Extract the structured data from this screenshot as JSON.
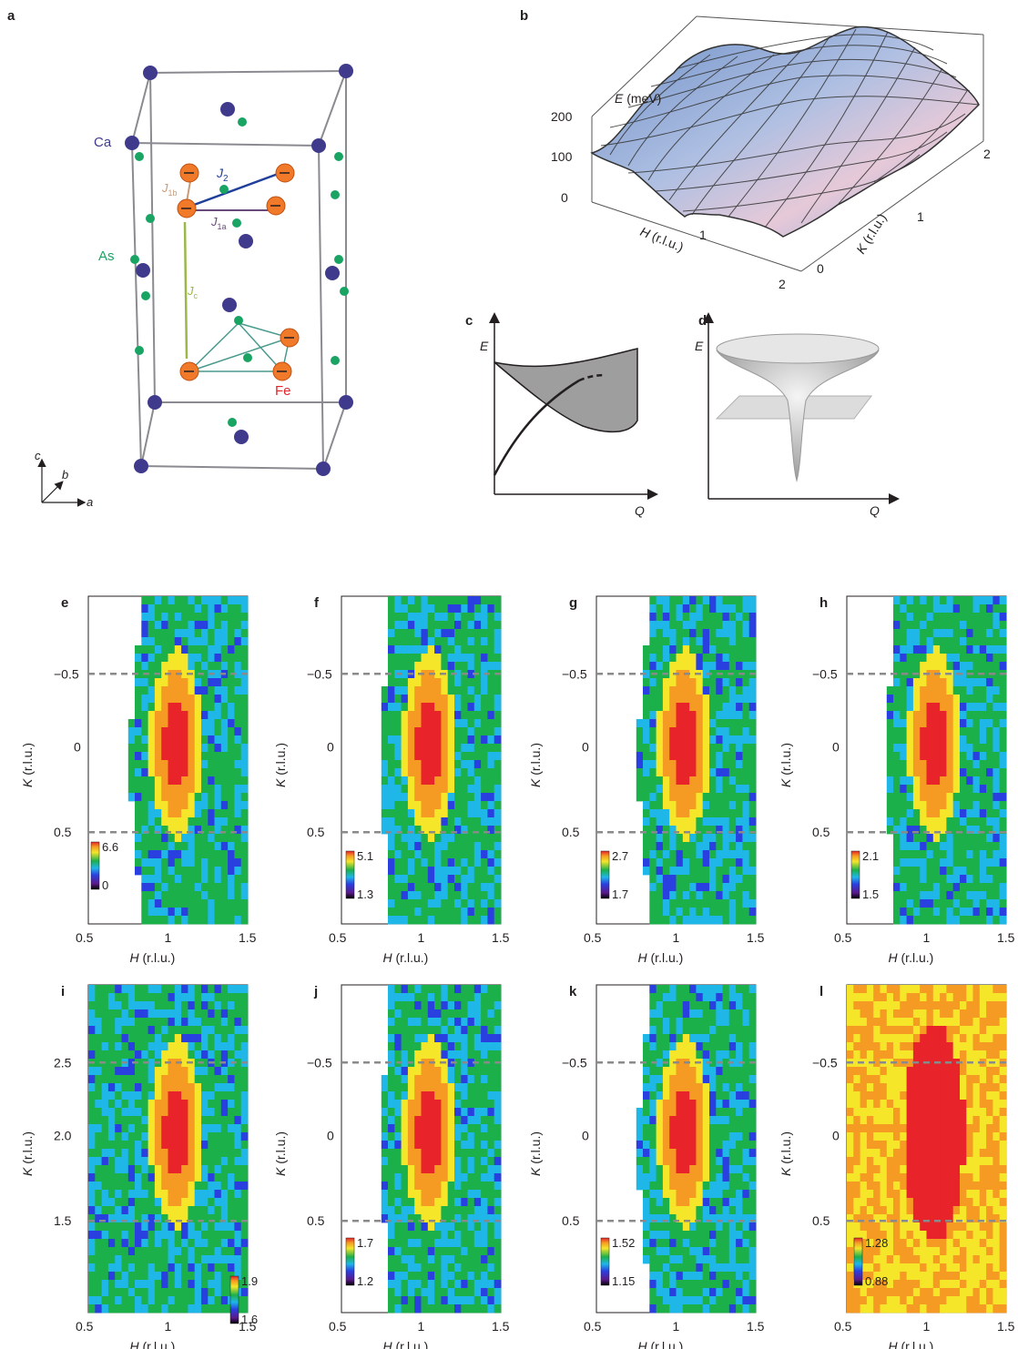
{
  "panel_labels": [
    "a",
    "b",
    "c",
    "d",
    "e",
    "f",
    "g",
    "h",
    "i",
    "j",
    "k",
    "l"
  ],
  "panel_a": {
    "atoms": {
      "ca": "Ca",
      "as": "As",
      "fe": "Fe"
    },
    "exchange": {
      "j1b": {
        "base": "J",
        "sub": "1b"
      },
      "j2": {
        "base": "J",
        "sub": "2"
      },
      "j1a": {
        "base": "J",
        "sub": "1a"
      },
      "jc": {
        "base": "J",
        "sub": "c"
      }
    },
    "axes": {
      "a": "a",
      "b": "b",
      "c": "c"
    },
    "colors": {
      "ca": "#3f3a8c",
      "as": "#19a463",
      "fe": "#f07a2a",
      "j2": "#1f3f9a",
      "jc": "#9bb84a",
      "cell": "#8a8a90",
      "j1b": "#c89b7a"
    }
  },
  "panel_b": {
    "zlabel": {
      "var": "E",
      "unit": " (meV)"
    },
    "zticks": [
      "0",
      "100",
      "200"
    ],
    "xlabel": {
      "var": "H",
      "unit": " (r.l.u.)"
    },
    "xticks": [
      "1",
      "2"
    ],
    "ylabel": {
      "var": "K",
      "unit": " (r.l.u.)"
    },
    "yticks": [
      "0",
      "1",
      "2"
    ]
  },
  "panel_c": {
    "ylabel": "E",
    "xlabel": "Q"
  },
  "panel_d": {
    "ylabel": "E",
    "xlabel": "Q"
  },
  "maps": {
    "xlabel_var": "H",
    "xlabel_unit": " (r.l.u.)",
    "ylabel_var": "K",
    "ylabel_unit": " (r.l.u.)",
    "xticks": [
      "0.5",
      "1",
      "1.5"
    ],
    "yticks_main": [
      "−0.5",
      "0",
      "0.5"
    ],
    "yticks_i": [
      "2.5",
      "2.0",
      "1.5"
    ]
  },
  "chart_data": [
    {
      "type": "heatmap",
      "panel": "e",
      "x": [
        0.5,
        1,
        1.5
      ],
      "y": [
        -0.5,
        0,
        0.5
      ],
      "colorbar": [
        0,
        6.6
      ]
    },
    {
      "type": "heatmap",
      "panel": "f",
      "x": [
        0.5,
        1,
        1.5
      ],
      "y": [
        -0.5,
        0,
        0.5
      ],
      "colorbar": [
        1.3,
        5.1
      ]
    },
    {
      "type": "heatmap",
      "panel": "g",
      "x": [
        0.5,
        1,
        1.5
      ],
      "y": [
        -0.5,
        0,
        0.5
      ],
      "colorbar": [
        1.7,
        2.7
      ]
    },
    {
      "type": "heatmap",
      "panel": "h",
      "x": [
        0.5,
        1,
        1.5
      ],
      "y": [
        -0.5,
        0,
        0.5
      ],
      "colorbar": [
        1.5,
        2.1
      ]
    },
    {
      "type": "heatmap",
      "panel": "i",
      "x": [
        0.5,
        1,
        1.5
      ],
      "y": [
        2.5,
        2.0,
        1.5
      ],
      "colorbar": [
        1.6,
        1.9
      ]
    },
    {
      "type": "heatmap",
      "panel": "j",
      "x": [
        0.5,
        1,
        1.5
      ],
      "y": [
        -0.5,
        0,
        0.5
      ],
      "colorbar": [
        1.2,
        1.7
      ]
    },
    {
      "type": "heatmap",
      "panel": "k",
      "x": [
        0.5,
        1,
        1.5
      ],
      "y": [
        -0.5,
        0,
        0.5
      ],
      "colorbar": [
        1.15,
        1.52
      ]
    },
    {
      "type": "heatmap",
      "panel": "l",
      "x": [
        0.5,
        1,
        1.5
      ],
      "y": [
        -0.5,
        0,
        0.5
      ],
      "colorbar": [
        0.88,
        1.28
      ]
    }
  ]
}
